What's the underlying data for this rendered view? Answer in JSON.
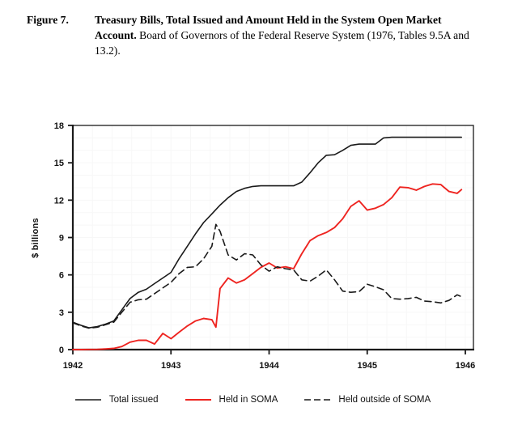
{
  "caption": {
    "figure_label": "Figure 7.",
    "title": "Treasury Bills, Total Issued and Amount Held in the System Open Market Account.",
    "source": " Board of Governors of the Federal Reserve System (1976, Tables 9.5A and 13.2)."
  },
  "chart_data": {
    "type": "line",
    "title": "",
    "xlabel": "",
    "ylabel": "$ billions",
    "xlim": [
      1942,
      1946.08
    ],
    "ylim": [
      0,
      18
    ],
    "x_ticks": [
      "1942",
      "1943",
      "1944",
      "1945",
      "1946"
    ],
    "x_tick_values": [
      1942,
      1943,
      1944,
      1945,
      1946
    ],
    "y_ticks": [
      "0",
      "3",
      "6",
      "9",
      "12",
      "15",
      "18"
    ],
    "y_tick_values": [
      0,
      3,
      6,
      9,
      12,
      15,
      18
    ],
    "grid": "faint minor grid",
    "grid_color": "#f7f7f7",
    "axis_color": "#1a1a1a",
    "legend_position": "bottom",
    "series": [
      {
        "name": "Total issued",
        "color": "#1a1a1a",
        "dash": null,
        "width": 1.6,
        "points": [
          [
            1942.0,
            2.2
          ],
          [
            1942.083,
            1.95
          ],
          [
            1942.167,
            1.75
          ],
          [
            1942.25,
            1.85
          ],
          [
            1942.333,
            2.05
          ],
          [
            1942.417,
            2.3
          ],
          [
            1942.5,
            3.2
          ],
          [
            1942.583,
            4.1
          ],
          [
            1942.667,
            4.6
          ],
          [
            1942.75,
            4.85
          ],
          [
            1942.833,
            5.3
          ],
          [
            1942.917,
            5.75
          ],
          [
            1943.0,
            6.2
          ],
          [
            1943.083,
            7.3
          ],
          [
            1943.167,
            8.3
          ],
          [
            1943.25,
            9.3
          ],
          [
            1943.333,
            10.2
          ],
          [
            1943.417,
            10.9
          ],
          [
            1943.458,
            11.25
          ],
          [
            1943.5,
            11.6
          ],
          [
            1943.583,
            12.2
          ],
          [
            1943.667,
            12.7
          ],
          [
            1943.75,
            12.95
          ],
          [
            1943.833,
            13.1
          ],
          [
            1943.917,
            13.15
          ],
          [
            1944.0,
            13.15
          ],
          [
            1944.083,
            13.15
          ],
          [
            1944.167,
            13.15
          ],
          [
            1944.25,
            13.15
          ],
          [
            1944.333,
            13.45
          ],
          [
            1944.417,
            14.2
          ],
          [
            1944.5,
            15.0
          ],
          [
            1944.583,
            15.6
          ],
          [
            1944.667,
            15.65
          ],
          [
            1944.75,
            16.0
          ],
          [
            1944.833,
            16.4
          ],
          [
            1944.917,
            16.5
          ],
          [
            1945.0,
            16.5
          ],
          [
            1945.083,
            16.5
          ],
          [
            1945.167,
            17.0
          ],
          [
            1945.25,
            17.05
          ],
          [
            1945.333,
            17.05
          ],
          [
            1945.417,
            17.05
          ],
          [
            1945.5,
            17.05
          ],
          [
            1945.583,
            17.05
          ],
          [
            1945.667,
            17.05
          ],
          [
            1945.75,
            17.05
          ],
          [
            1945.833,
            17.05
          ],
          [
            1945.917,
            17.05
          ],
          [
            1945.96,
            17.05
          ]
        ]
      },
      {
        "name": "Held in SOMA",
        "color": "#ee2420",
        "dash": null,
        "width": 1.9,
        "points": [
          [
            1942.0,
            0
          ],
          [
            1942.083,
            0
          ],
          [
            1942.167,
            0.01
          ],
          [
            1942.25,
            0.02
          ],
          [
            1942.333,
            0.05
          ],
          [
            1942.417,
            0.1
          ],
          [
            1942.5,
            0.25
          ],
          [
            1942.583,
            0.6
          ],
          [
            1942.667,
            0.75
          ],
          [
            1942.75,
            0.75
          ],
          [
            1942.833,
            0.45
          ],
          [
            1942.917,
            1.3
          ],
          [
            1943.0,
            0.88
          ],
          [
            1943.083,
            1.4
          ],
          [
            1943.167,
            1.9
          ],
          [
            1943.25,
            2.3
          ],
          [
            1943.333,
            2.5
          ],
          [
            1943.417,
            2.4
          ],
          [
            1943.458,
            1.8
          ],
          [
            1943.5,
            4.9
          ],
          [
            1943.583,
            5.75
          ],
          [
            1943.667,
            5.35
          ],
          [
            1943.75,
            5.6
          ],
          [
            1943.833,
            6.1
          ],
          [
            1943.917,
            6.6
          ],
          [
            1944.0,
            6.95
          ],
          [
            1944.083,
            6.55
          ],
          [
            1944.167,
            6.65
          ],
          [
            1944.25,
            6.5
          ],
          [
            1944.333,
            7.7
          ],
          [
            1944.417,
            8.75
          ],
          [
            1944.5,
            9.15
          ],
          [
            1944.583,
            9.4
          ],
          [
            1944.667,
            9.8
          ],
          [
            1944.75,
            10.5
          ],
          [
            1944.833,
            11.5
          ],
          [
            1944.917,
            11.95
          ],
          [
            1945.0,
            11.2
          ],
          [
            1945.083,
            11.35
          ],
          [
            1945.167,
            11.65
          ],
          [
            1945.25,
            12.2
          ],
          [
            1945.333,
            13.05
          ],
          [
            1945.417,
            13.0
          ],
          [
            1945.5,
            12.8
          ],
          [
            1945.583,
            13.1
          ],
          [
            1945.667,
            13.3
          ],
          [
            1945.75,
            13.25
          ],
          [
            1945.833,
            12.7
          ],
          [
            1945.917,
            12.55
          ],
          [
            1945.96,
            12.85
          ]
        ]
      },
      {
        "name": "Held outside of SOMA",
        "color": "#1a1a1a",
        "dash": "8 5",
        "width": 1.6,
        "points": [
          [
            1942.0,
            2.15
          ],
          [
            1942.083,
            1.9
          ],
          [
            1942.167,
            1.72
          ],
          [
            1942.25,
            1.8
          ],
          [
            1942.333,
            2.0
          ],
          [
            1942.417,
            2.2
          ],
          [
            1942.5,
            3.0
          ],
          [
            1942.583,
            3.8
          ],
          [
            1942.667,
            4.0
          ],
          [
            1942.75,
            4.05
          ],
          [
            1942.833,
            4.5
          ],
          [
            1942.917,
            4.95
          ],
          [
            1943.0,
            5.4
          ],
          [
            1943.083,
            6.1
          ],
          [
            1943.167,
            6.6
          ],
          [
            1943.25,
            6.65
          ],
          [
            1943.333,
            7.3
          ],
          [
            1943.417,
            8.3
          ],
          [
            1943.458,
            10.05
          ],
          [
            1943.5,
            9.5
          ],
          [
            1943.583,
            7.6
          ],
          [
            1943.667,
            7.2
          ],
          [
            1943.75,
            7.7
          ],
          [
            1943.833,
            7.6
          ],
          [
            1943.917,
            6.8
          ],
          [
            1944.0,
            6.3
          ],
          [
            1944.083,
            6.65
          ],
          [
            1944.167,
            6.5
          ],
          [
            1944.25,
            6.4
          ],
          [
            1944.333,
            5.6
          ],
          [
            1944.417,
            5.5
          ],
          [
            1944.5,
            5.9
          ],
          [
            1944.583,
            6.4
          ],
          [
            1944.667,
            5.6
          ],
          [
            1944.75,
            4.7
          ],
          [
            1944.833,
            4.6
          ],
          [
            1944.917,
            4.65
          ],
          [
            1945.0,
            5.25
          ],
          [
            1945.083,
            5.05
          ],
          [
            1945.167,
            4.8
          ],
          [
            1945.25,
            4.1
          ],
          [
            1945.333,
            4.05
          ],
          [
            1945.417,
            4.1
          ],
          [
            1945.5,
            4.2
          ],
          [
            1945.583,
            3.9
          ],
          [
            1945.667,
            3.85
          ],
          [
            1945.75,
            3.75
          ],
          [
            1945.833,
            3.95
          ],
          [
            1945.917,
            4.4
          ],
          [
            1945.96,
            4.25
          ]
        ]
      }
    ]
  }
}
